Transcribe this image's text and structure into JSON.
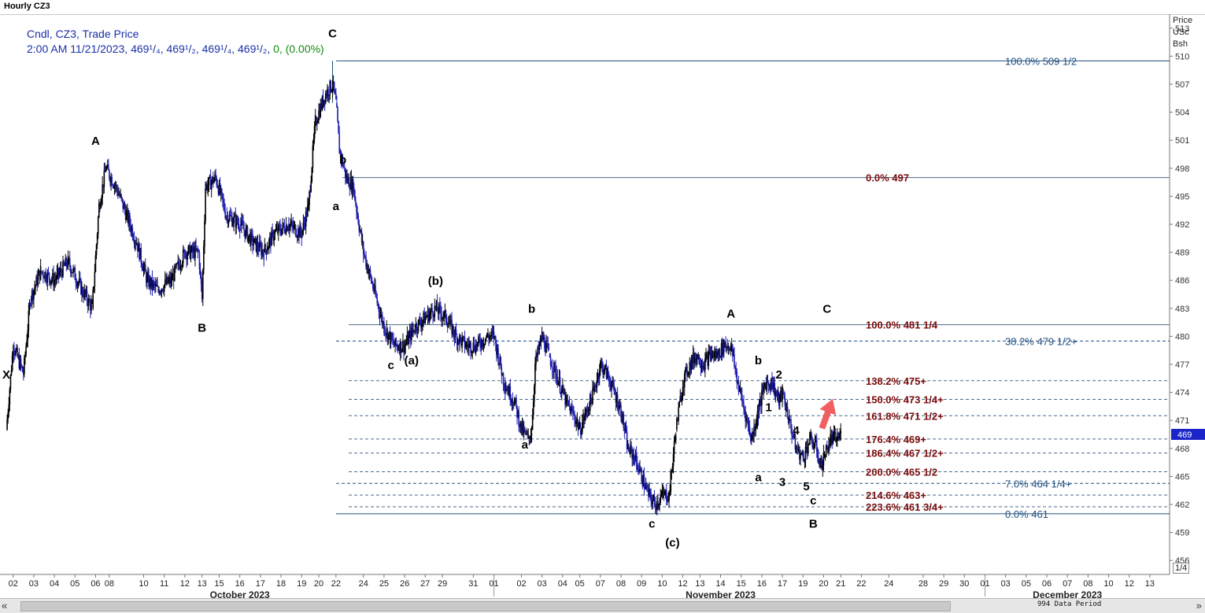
{
  "window": {
    "title": "Hourly CZ3"
  },
  "legend": {
    "line1": "Cndl, CZ3, Trade Price",
    "line2_prefix": "2:00 AM 11/21/2023, 469",
    "line2_values": "¹/₄, 469¹/₂, 469¹/₄, 469¹/₂, ",
    "line2_change": "0, (0.00%)"
  },
  "price_axis": {
    "unit_label": [
      "Price",
      "USc",
      "Bsh"
    ],
    "current_price_tag": "469",
    "scale_button": "1/4"
  },
  "scrollbar": {
    "left_arrow": "«",
    "right_arrow": "»",
    "data_period": "994 Data Period"
  },
  "colors": {
    "candle": "#1f1fb0",
    "candle_dark": "#000000",
    "fib_blue": "#1f4f7f",
    "fib_red": "#7a0c0c",
    "arrow": "#f06060",
    "price_tag": "#1a24c8"
  },
  "chart_data": {
    "type": "candlestick",
    "title": "Hourly CZ3",
    "ylim": [
      454.5,
      514.5
    ],
    "y_ticks": [
      456,
      459,
      462,
      465,
      468,
      471,
      474,
      477,
      480,
      483,
      486,
      489,
      492,
      495,
      498,
      501,
      504,
      507,
      510,
      513
    ],
    "x_ticks": [
      {
        "label": "02",
        "i": 2
      },
      {
        "label": "03",
        "i": 8
      },
      {
        "label": "04",
        "i": 14
      },
      {
        "label": "05",
        "i": 20
      },
      {
        "label": "06",
        "i": 26
      },
      {
        "label": "08",
        "i": 30
      },
      {
        "label": "10",
        "i": 40
      },
      {
        "label": "11",
        "i": 46
      },
      {
        "label": "12",
        "i": 52
      },
      {
        "label": "13",
        "i": 57
      },
      {
        "label": "15",
        "i": 62
      },
      {
        "label": "16",
        "i": 68
      },
      {
        "label": "17",
        "i": 74
      },
      {
        "label": "18",
        "i": 80
      },
      {
        "label": "19",
        "i": 86
      },
      {
        "label": "20",
        "i": 91
      },
      {
        "label": "22",
        "i": 96
      },
      {
        "label": "24",
        "i": 104
      },
      {
        "label": "25",
        "i": 110
      },
      {
        "label": "26",
        "i": 116
      },
      {
        "label": "27",
        "i": 122
      },
      {
        "label": "29",
        "i": 127
      },
      {
        "label": "31",
        "i": 136
      },
      {
        "label": "01",
        "i": 142
      },
      {
        "label": "02",
        "i": 150
      },
      {
        "label": "03",
        "i": 156
      },
      {
        "label": "04",
        "i": 162
      },
      {
        "label": "05",
        "i": 167
      },
      {
        "label": "07",
        "i": 173
      },
      {
        "label": "08",
        "i": 179
      },
      {
        "label": "09",
        "i": 185
      },
      {
        "label": "10",
        "i": 191
      },
      {
        "label": "12",
        "i": 197
      },
      {
        "label": "13",
        "i": 202
      },
      {
        "label": "14",
        "i": 208
      },
      {
        "label": "15",
        "i": 214
      },
      {
        "label": "16",
        "i": 220
      },
      {
        "label": "17",
        "i": 226
      },
      {
        "label": "19",
        "i": 232
      },
      {
        "label": "20",
        "i": 238
      },
      {
        "label": "21",
        "i": 243
      },
      {
        "label": "22",
        "i": 249
      },
      {
        "label": "24",
        "i": 257
      },
      {
        "label": "28",
        "i": 267
      },
      {
        "label": "29",
        "i": 273
      },
      {
        "label": "30",
        "i": 279
      },
      {
        "label": "01",
        "i": 285
      },
      {
        "label": "03",
        "i": 291
      },
      {
        "label": "05",
        "i": 297
      },
      {
        "label": "06",
        "i": 303
      },
      {
        "label": "07",
        "i": 309
      },
      {
        "label": "08",
        "i": 315
      },
      {
        "label": "10",
        "i": 321
      },
      {
        "label": "12",
        "i": 327
      },
      {
        "label": "13",
        "i": 333
      }
    ],
    "month_labels": [
      {
        "label": "October 2023",
        "i": 68
      },
      {
        "label": "November 2023",
        "i": 208
      },
      {
        "label": "December 2023",
        "i": 309
      }
    ],
    "path": [
      [
        0,
        470
      ],
      [
        2,
        479
      ],
      [
        5,
        476
      ],
      [
        7,
        484
      ],
      [
        10,
        487
      ],
      [
        14,
        486
      ],
      [
        18,
        488
      ],
      [
        22,
        485
      ],
      [
        25,
        483
      ],
      [
        27,
        494
      ],
      [
        29,
        498
      ],
      [
        32,
        496
      ],
      [
        35,
        493
      ],
      [
        38,
        490
      ],
      [
        41,
        486
      ],
      [
        44,
        485
      ],
      [
        48,
        486
      ],
      [
        52,
        489
      ],
      [
        56,
        489
      ],
      [
        57,
        484
      ],
      [
        58,
        496
      ],
      [
        61,
        497
      ],
      [
        64,
        493
      ],
      [
        68,
        492
      ],
      [
        72,
        490
      ],
      [
        75,
        489
      ],
      [
        78,
        491
      ],
      [
        82,
        492
      ],
      [
        86,
        491
      ],
      [
        88,
        494
      ],
      [
        90,
        503
      ],
      [
        93,
        506
      ],
      [
        95,
        507
      ],
      [
        96,
        505
      ],
      [
        97,
        500
      ],
      [
        99,
        497
      ],
      [
        101,
        496
      ],
      [
        104,
        489
      ],
      [
        107,
        485
      ],
      [
        110,
        481
      ],
      [
        113,
        479
      ],
      [
        116,
        479
      ],
      [
        119,
        481
      ],
      [
        122,
        482
      ],
      [
        125,
        483
      ],
      [
        128,
        482
      ],
      [
        131,
        480
      ],
      [
        134,
        479
      ],
      [
        137,
        479
      ],
      [
        140,
        480
      ],
      [
        142,
        480
      ],
      [
        145,
        475
      ],
      [
        148,
        473
      ],
      [
        150,
        470
      ],
      [
        152,
        469
      ],
      [
        153,
        470
      ],
      [
        154,
        477
      ],
      [
        156,
        480
      ],
      [
        158,
        478
      ],
      [
        160,
        476
      ],
      [
        163,
        473
      ],
      [
        166,
        471
      ],
      [
        167,
        470
      ],
      [
        169,
        472
      ],
      [
        171,
        474
      ],
      [
        173,
        477
      ],
      [
        175,
        476
      ],
      [
        177,
        474
      ],
      [
        179,
        472
      ],
      [
        181,
        468
      ],
      [
        183,
        467
      ],
      [
        185,
        465
      ],
      [
        187,
        463
      ],
      [
        189,
        462
      ],
      [
        191,
        463
      ],
      [
        193,
        463
      ],
      [
        195,
        470
      ],
      [
        197,
        475
      ],
      [
        199,
        477
      ],
      [
        201,
        478
      ],
      [
        203,
        477
      ],
      [
        205,
        478
      ],
      [
        207,
        478
      ],
      [
        209,
        479
      ],
      [
        211,
        479
      ],
      [
        213,
        475
      ],
      [
        215,
        472
      ],
      [
        217,
        469
      ],
      [
        219,
        472
      ],
      [
        221,
        475
      ],
      [
        223,
        475
      ],
      [
        225,
        473
      ],
      [
        226,
        474
      ],
      [
        228,
        471
      ],
      [
        230,
        468
      ],
      [
        232,
        467
      ],
      [
        234,
        469
      ],
      [
        236,
        468
      ],
      [
        237,
        466
      ],
      [
        238,
        467
      ],
      [
        240,
        469
      ],
      [
        242,
        469
      ],
      [
        243,
        469.5
      ]
    ],
    "fib_lines": [
      {
        "label": "100.0% 509 1/2",
        "y": 509.5,
        "style": "solid",
        "color": "blue"
      },
      {
        "label": "0.0%     497",
        "y": 497,
        "style": "solid",
        "color": "red"
      },
      {
        "label": "100.0% 481 1/4",
        "y": 481.25,
        "style": "solid",
        "color": "red"
      },
      {
        "label": "38.2%   479 1/2+",
        "y": 479.5,
        "style": "dashed",
        "color": "blue"
      },
      {
        "label": "138.2% 475+",
        "y": 475.25,
        "style": "dashed",
        "color": "red"
      },
      {
        "label": "150.0% 473 1/4+",
        "y": 473.25,
        "style": "dashed",
        "color": "red"
      },
      {
        "label": "161.8% 471 1/2+",
        "y": 471.5,
        "style": "dashed",
        "color": "red"
      },
      {
        "label": "176.4% 469+",
        "y": 469.0,
        "style": "dashed",
        "color": "red"
      },
      {
        "label": "186.4% 467 1/2+",
        "y": 467.5,
        "style": "dashed",
        "color": "red"
      },
      {
        "label": "200.0% 465 1/2",
        "y": 465.5,
        "style": "dashed",
        "color": "red"
      },
      {
        "label": "7.0%     464 1/4+",
        "y": 464.25,
        "style": "dashed",
        "color": "blue"
      },
      {
        "label": "214.6% 463+",
        "y": 463.0,
        "style": "dashed",
        "color": "red"
      },
      {
        "label": "223.6% 461 3/4+",
        "y": 461.75,
        "style": "dashed",
        "color": "red"
      },
      {
        "label": "0.0%     461",
        "y": 461.0,
        "style": "solid",
        "color": "blue"
      }
    ],
    "wave_labels": [
      {
        "text": "X",
        "i": 0,
        "y": 475.5
      },
      {
        "text": "A",
        "i": 26,
        "y": 500.5
      },
      {
        "text": "B",
        "i": 57,
        "y": 480.5
      },
      {
        "text": "C",
        "i": 95,
        "y": 512
      },
      {
        "text": "b",
        "i": 98,
        "y": 498.5
      },
      {
        "text": "a",
        "i": 96,
        "y": 493.5
      },
      {
        "text": "(b)",
        "i": 125,
        "y": 485.5
      },
      {
        "text": "(a)",
        "i": 118,
        "y": 477
      },
      {
        "text": "c",
        "i": 112,
        "y": 476.5
      },
      {
        "text": "b",
        "i": 153,
        "y": 482.5
      },
      {
        "text": "a",
        "i": 151,
        "y": 468
      },
      {
        "text": "c",
        "i": 188,
        "y": 459.5
      },
      {
        "text": "(c)",
        "i": 194,
        "y": 457.5
      },
      {
        "text": "A",
        "i": 211,
        "y": 482
      },
      {
        "text": "C",
        "i": 239,
        "y": 482.5
      },
      {
        "text": "b",
        "i": 219,
        "y": 477
      },
      {
        "text": "2",
        "i": 225,
        "y": 475.5
      },
      {
        "text": "1",
        "i": 222,
        "y": 472
      },
      {
        "text": "a",
        "i": 219,
        "y": 464.5
      },
      {
        "text": "3",
        "i": 226,
        "y": 464
      },
      {
        "text": "4",
        "i": 230,
        "y": 469.5
      },
      {
        "text": "5",
        "i": 233,
        "y": 463.5
      },
      {
        "text": "c",
        "i": 235,
        "y": 462
      },
      {
        "text": "B",
        "i": 235,
        "y": 459.5
      }
    ]
  }
}
